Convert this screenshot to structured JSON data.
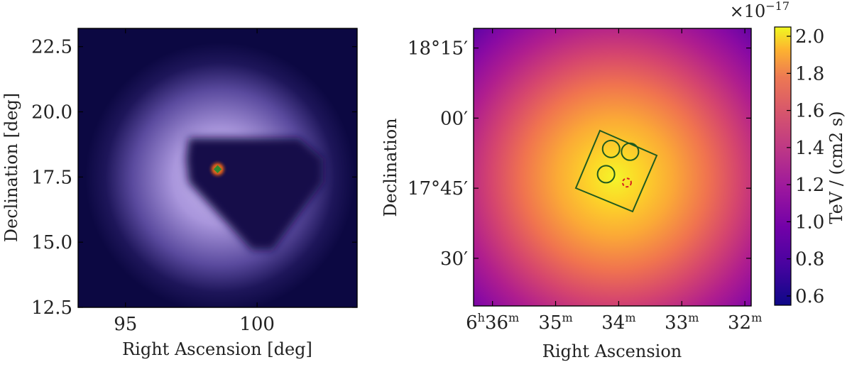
{
  "chart_data": [
    {
      "type": "heatmap",
      "panel": "left",
      "xlabel": "Right Ascension [deg]",
      "ylabel": "Declination [deg]",
      "xlim": [
        93.2,
        103.8
      ],
      "ylim": [
        12.5,
        23.2
      ],
      "x_ticks": [
        "95",
        "100"
      ],
      "x_tick_values": [
        95,
        100
      ],
      "y_ticks": [
        "12.5",
        "15.0",
        "17.5",
        "20.0",
        "22.5"
      ],
      "y_tick_values": [
        12.5,
        15.0,
        17.5,
        20.0,
        22.5
      ],
      "source_position": {
        "ra": 98.5,
        "dec": 17.8
      },
      "exclusion_polygon": [
        [
          97.4,
          19.0
        ],
        [
          101.6,
          19.0
        ],
        [
          102.5,
          18.2
        ],
        [
          102.5,
          17.3
        ],
        [
          100.6,
          14.7
        ],
        [
          99.8,
          14.7
        ],
        [
          97.4,
          17.3
        ],
        [
          97.3,
          18.2
        ]
      ],
      "colors": {
        "background": "#0c0842",
        "glow": "#b9a8e8",
        "masked": "#15114a",
        "source": "#2f8a2f"
      }
    },
    {
      "type": "heatmap",
      "panel": "right",
      "xlabel": "Right Ascension",
      "ylabel": "Declination",
      "x_ticks": [
        "6h36m",
        "35m",
        "34m",
        "33m",
        "32m"
      ],
      "x_tick_values": [
        36,
        35,
        34,
        33,
        32
      ],
      "y_ticks": [
        "18°15′",
        "00′",
        "17°45′",
        "30′"
      ],
      "y_tick_values": [
        18.25,
        18.0,
        17.75,
        17.5
      ],
      "xlim": [
        36.3,
        31.9
      ],
      "ylim": [
        17.33,
        18.32
      ],
      "colorbar": {
        "label": "TeV / (cm2 s)",
        "exponent": "×10−17",
        "range": [
          0.55,
          2.05
        ],
        "ticks": [
          "0.6",
          "0.8",
          "1.0",
          "1.2",
          "1.4",
          "1.6",
          "1.8",
          "2.0"
        ],
        "tick_values": [
          0.6,
          0.8,
          1.0,
          1.2,
          1.4,
          1.6,
          1.8,
          2.0
        ],
        "colormap": "plasma"
      },
      "on_region_center": {
        "ra_min": 33.87,
        "dec": 17.77
      },
      "off_regions": [
        {
          "ra_min": 34.12,
          "dec": 17.89
        },
        {
          "ra_min": 33.82,
          "dec": 17.88
        },
        {
          "ra_min": 34.2,
          "dec": 17.8
        }
      ],
      "colors": {
        "region": "#1f5a1f",
        "on_region": "#d62020"
      }
    }
  ]
}
